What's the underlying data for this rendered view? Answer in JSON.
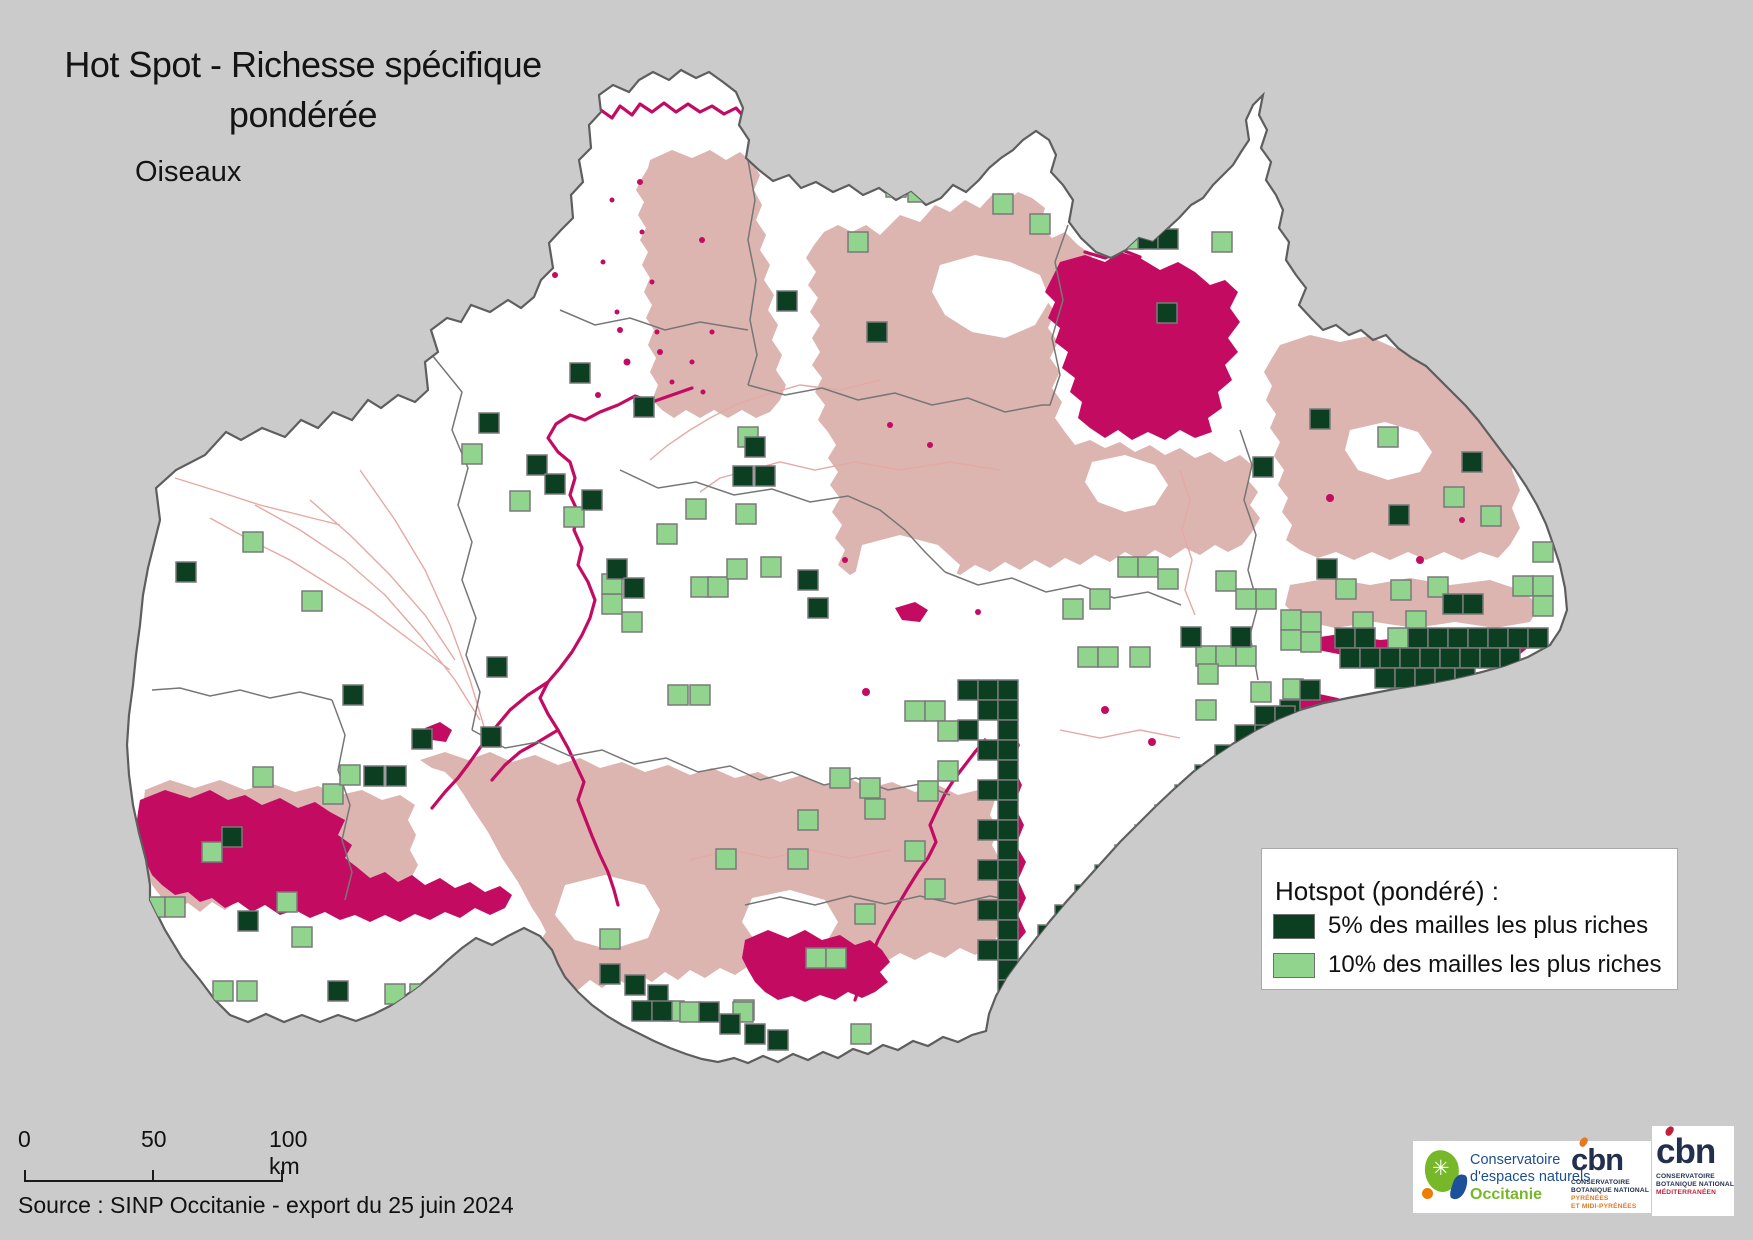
{
  "title": {
    "line1": "Hot Spot - Richesse spécifique",
    "line2": "pondérée",
    "subtitle": "Oiseaux"
  },
  "legend": {
    "title": "Hotspot (pondéré) :",
    "items": [
      {
        "label": "5% des mailles les plus riches",
        "color": "#0c3f22"
      },
      {
        "label": "10% des mailles les plus riches",
        "color": "#90d48e"
      }
    ]
  },
  "scalebar": {
    "labels": [
      "0",
      "50",
      "100 km"
    ]
  },
  "source": "Source : SINP Occitanie - export du 25 juin 2024",
  "logos": {
    "cen": {
      "line1": "Conservatoire",
      "line2": "d'espaces naturels",
      "region": "Occitanie"
    },
    "cbn_pyrenees": {
      "acronym": "cbn",
      "org1": "CONSERVATOIRE",
      "org2": "BOTANIQUE NATIONAL",
      "sub1": "PYRÉNÉES",
      "sub2": "ET MIDI-PYRÉNÉES"
    },
    "cbn_med": {
      "acronym": "cbn",
      "org1": "CONSERVATOIRE",
      "org2": "BOTANIQUE NATIONAL",
      "sub1": "MÉDITERRANÉEN"
    }
  },
  "map": {
    "cell_size": 20,
    "colors": {
      "background": "#cbcbcb",
      "region_fill": "#ffffff",
      "region_stroke": "#5e5e5e",
      "department_stroke": "#767676",
      "pink_area": "#dcb4b0",
      "magenta_area": "#c30b62",
      "river_magenta": "#c30b62",
      "river_pink": "#e5a9a4",
      "hotspot_5pct": "#0c3f22",
      "hotspot_10pct": "#90d48e",
      "square_stroke": "#7a7a7a"
    },
    "hotspots_5pct": [
      [
        724,
        58
      ],
      [
        867,
        322
      ],
      [
        777,
        291
      ],
      [
        570,
        363
      ],
      [
        1186,
        166
      ],
      [
        1138,
        229
      ],
      [
        1158,
        229
      ],
      [
        1157,
        303
      ],
      [
        479,
        413
      ],
      [
        634,
        397
      ],
      [
        527,
        455
      ],
      [
        545,
        474
      ],
      [
        582,
        490
      ],
      [
        607,
        559
      ],
      [
        624,
        578
      ],
      [
        487,
        657
      ],
      [
        481,
        727
      ],
      [
        745,
        437
      ],
      [
        733,
        466
      ],
      [
        755,
        466
      ],
      [
        798,
        570
      ],
      [
        808,
        598
      ],
      [
        176,
        562
      ],
      [
        343,
        685
      ],
      [
        364,
        766
      ],
      [
        386,
        766
      ],
      [
        412,
        729
      ],
      [
        238,
        911
      ],
      [
        222,
        827
      ],
      [
        328,
        981
      ],
      [
        1310,
        409
      ],
      [
        1253,
        457
      ],
      [
        1389,
        505
      ],
      [
        1462,
        452
      ],
      [
        1317,
        559
      ],
      [
        1443,
        594
      ],
      [
        1463,
        594
      ],
      [
        1300,
        680
      ],
      [
        1181,
        627
      ],
      [
        1231,
        627
      ],
      [
        1335,
        628
      ],
      [
        1355,
        628
      ],
      [
        1408,
        628
      ],
      [
        1428,
        628
      ],
      [
        1448,
        628
      ],
      [
        1468,
        628
      ],
      [
        1488,
        628
      ],
      [
        1508,
        628
      ],
      [
        1528,
        628
      ],
      [
        1340,
        648
      ],
      [
        1360,
        648
      ],
      [
        1380,
        648
      ],
      [
        1400,
        648
      ],
      [
        1420,
        648
      ],
      [
        1440,
        648
      ],
      [
        1460,
        648
      ],
      [
        1480,
        648
      ],
      [
        1500,
        648
      ],
      [
        1375,
        668
      ],
      [
        1395,
        668
      ],
      [
        1415,
        668
      ],
      [
        1435,
        668
      ],
      [
        1455,
        668
      ],
      [
        1280,
        700
      ],
      [
        1255,
        706
      ],
      [
        1275,
        706
      ],
      [
        1235,
        725
      ],
      [
        1255,
        725
      ],
      [
        1215,
        745
      ],
      [
        1235,
        745
      ],
      [
        1195,
        765
      ],
      [
        1215,
        765
      ],
      [
        1175,
        785
      ],
      [
        1195,
        785
      ],
      [
        1155,
        805
      ],
      [
        1175,
        805
      ],
      [
        1135,
        825
      ],
      [
        1155,
        825
      ],
      [
        1115,
        845
      ],
      [
        1135,
        845
      ],
      [
        1095,
        865
      ],
      [
        1115,
        865
      ],
      [
        1075,
        885
      ],
      [
        1095,
        885
      ],
      [
        1055,
        905
      ],
      [
        1075,
        905
      ],
      [
        1038,
        925
      ],
      [
        1058,
        925
      ],
      [
        958,
        680
      ],
      [
        978,
        680
      ],
      [
        998,
        680
      ],
      [
        978,
        700
      ],
      [
        998,
        700
      ],
      [
        958,
        720
      ],
      [
        998,
        720
      ],
      [
        978,
        740
      ],
      [
        998,
        740
      ],
      [
        998,
        760
      ],
      [
        978,
        780
      ],
      [
        998,
        780
      ],
      [
        998,
        800
      ],
      [
        978,
        820
      ],
      [
        998,
        820
      ],
      [
        998,
        840
      ],
      [
        978,
        860
      ],
      [
        998,
        860
      ],
      [
        998,
        880
      ],
      [
        978,
        900
      ],
      [
        998,
        900
      ],
      [
        998,
        920
      ],
      [
        978,
        940
      ],
      [
        998,
        940
      ],
      [
        998,
        960
      ],
      [
        998,
        980
      ],
      [
        1018,
        988
      ],
      [
        1018,
        1008
      ],
      [
        600,
        964
      ],
      [
        625,
        975
      ],
      [
        648,
        985
      ],
      [
        699,
        1002
      ],
      [
        720,
        1014
      ],
      [
        632,
        1001
      ],
      [
        652,
        1001
      ],
      [
        745,
        1024
      ],
      [
        768,
        1030
      ],
      [
        1027,
        1017
      ],
      [
        1047,
        1017
      ]
    ],
    "hotspots_10pct": [
      [
        243,
        532
      ],
      [
        302,
        591
      ],
      [
        462,
        444
      ],
      [
        253,
        767
      ],
      [
        323,
        784
      ],
      [
        340,
        765
      ],
      [
        202,
        842
      ],
      [
        145,
        897
      ],
      [
        165,
        897
      ],
      [
        277,
        892
      ],
      [
        213,
        981
      ],
      [
        237,
        981
      ],
      [
        292,
        927
      ],
      [
        385,
        984
      ],
      [
        410,
        984
      ],
      [
        510,
        491
      ],
      [
        564,
        507
      ],
      [
        602,
        594
      ],
      [
        622,
        612
      ],
      [
        657,
        524
      ],
      [
        691,
        577
      ],
      [
        708,
        577
      ],
      [
        727,
        559
      ],
      [
        761,
        557
      ],
      [
        668,
        685
      ],
      [
        690,
        685
      ],
      [
        738,
        427
      ],
      [
        686,
        499
      ],
      [
        736,
        504
      ],
      [
        602,
        574
      ],
      [
        993,
        194
      ],
      [
        1030,
        214
      ],
      [
        848,
        232
      ],
      [
        886,
        177
      ],
      [
        908,
        182
      ],
      [
        1193,
        139
      ],
      [
        1212,
        232
      ],
      [
        1103,
        229
      ],
      [
        1123,
        229
      ],
      [
        1073,
        129
      ],
      [
        1281,
        610
      ],
      [
        1281,
        630
      ],
      [
        1078,
        647
      ],
      [
        1098,
        647
      ],
      [
        1130,
        647
      ],
      [
        1196,
        646
      ],
      [
        1216,
        646
      ],
      [
        1236,
        646
      ],
      [
        1198,
        664
      ],
      [
        1283,
        679
      ],
      [
        1251,
        682
      ],
      [
        1196,
        700
      ],
      [
        1118,
        557
      ],
      [
        1138,
        557
      ],
      [
        1158,
        569
      ],
      [
        1216,
        571
      ],
      [
        1236,
        589
      ],
      [
        1256,
        589
      ],
      [
        1090,
        589
      ],
      [
        1063,
        599
      ],
      [
        1444,
        487
      ],
      [
        1533,
        471
      ],
      [
        1481,
        506
      ],
      [
        1533,
        542
      ],
      [
        1336,
        579
      ],
      [
        1391,
        580
      ],
      [
        1428,
        577
      ],
      [
        1513,
        576
      ],
      [
        1533,
        576
      ],
      [
        1533,
        596
      ],
      [
        1301,
        612
      ],
      [
        1353,
        612
      ],
      [
        1406,
        611
      ],
      [
        1301,
        632
      ],
      [
        1388,
        628
      ],
      [
        1378,
        427
      ],
      [
        905,
        701
      ],
      [
        925,
        701
      ],
      [
        938,
        721
      ],
      [
        865,
        799
      ],
      [
        905,
        841
      ],
      [
        925,
        879
      ],
      [
        855,
        904
      ],
      [
        938,
        761
      ],
      [
        918,
        781
      ],
      [
        798,
        810
      ],
      [
        830,
        768
      ],
      [
        860,
        778
      ],
      [
        664,
        1001
      ],
      [
        734,
        1000
      ],
      [
        806,
        948
      ],
      [
        826,
        948
      ],
      [
        851,
        1024
      ],
      [
        680,
        1002
      ],
      [
        733,
        1002
      ],
      [
        716,
        849
      ],
      [
        788,
        849
      ],
      [
        600,
        929
      ],
      [
        997,
        1002
      ],
      [
        1017,
        1002
      ],
      [
        1037,
        1002
      ],
      [
        1057,
        1002
      ],
      [
        1077,
        1002
      ],
      [
        1008,
        967
      ],
      [
        1028,
        967
      ],
      [
        1048,
        967
      ],
      [
        1010,
        1039
      ],
      [
        1030,
        1039
      ]
    ]
  }
}
